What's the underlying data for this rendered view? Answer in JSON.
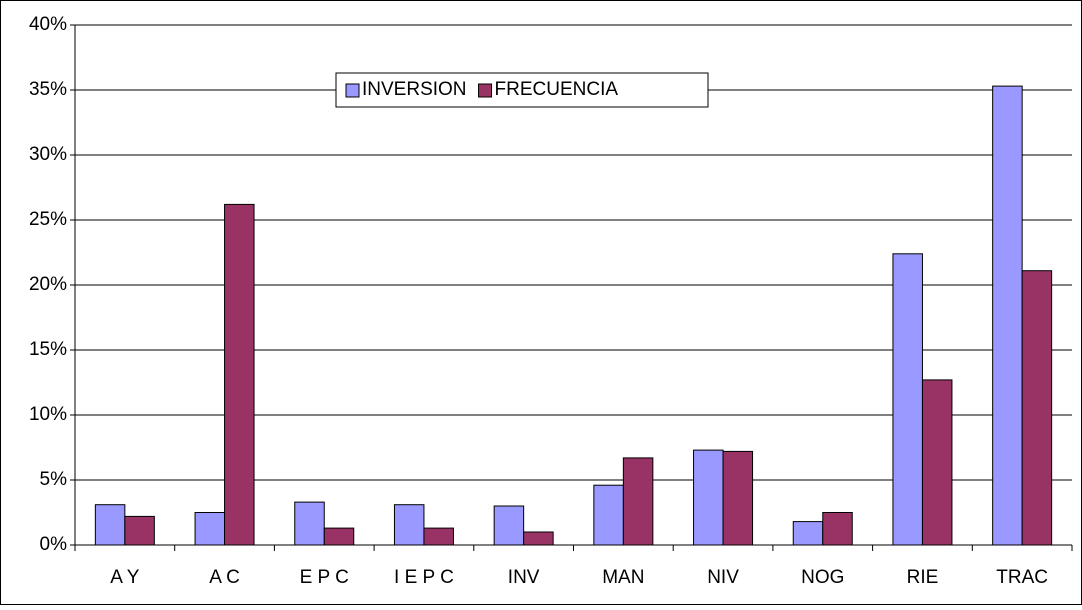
{
  "chart_data": {
    "type": "bar",
    "categories": [
      "A Y",
      "A C",
      "E P C",
      "I E P C",
      "INV",
      "MAN",
      "NIV",
      "NOG",
      "RIE",
      "TRAC"
    ],
    "series": [
      {
        "name": "INVERSION",
        "color": "#9999ff",
        "values": [
          3.1,
          2.5,
          3.3,
          3.1,
          3.0,
          4.6,
          7.3,
          1.8,
          22.4,
          35.3
        ]
      },
      {
        "name": "FRECUENCIA",
        "color": "#993366",
        "values": [
          2.2,
          26.2,
          1.3,
          1.3,
          1.0,
          6.7,
          7.2,
          2.5,
          12.7,
          21.1
        ]
      }
    ],
    "ylim": [
      0,
      40
    ],
    "yticks": [
      {
        "value": 0,
        "label": "0%"
      },
      {
        "value": 5,
        "label": "5%"
      },
      {
        "value": 10,
        "label": "10%"
      },
      {
        "value": 15,
        "label": "15%"
      },
      {
        "value": 20,
        "label": "20%"
      },
      {
        "value": 25,
        "label": "25%"
      },
      {
        "value": 30,
        "label": "30%"
      },
      {
        "value": 35,
        "label": "35%"
      },
      {
        "value": 40,
        "label": "40%"
      }
    ],
    "grid": true,
    "legend": "top"
  }
}
